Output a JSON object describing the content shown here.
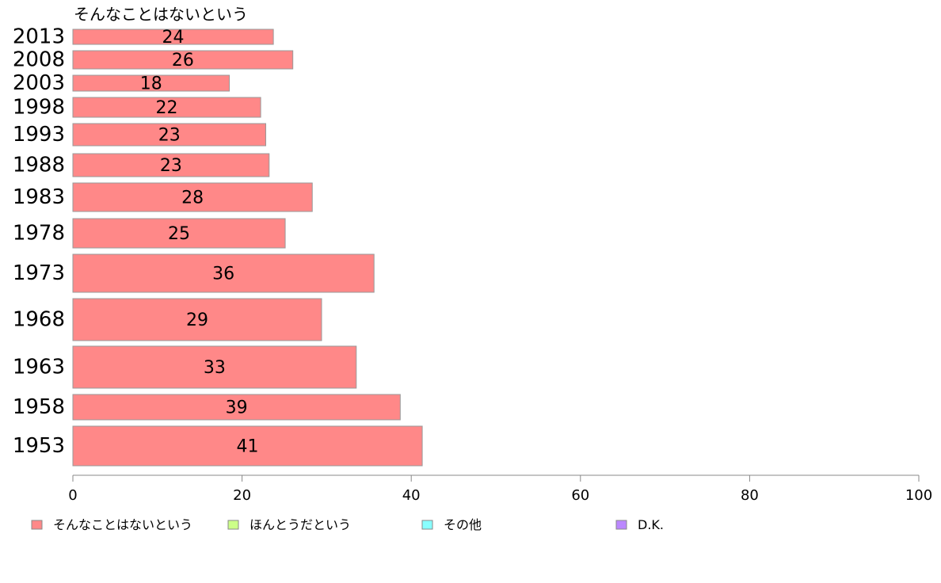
{
  "chart_data": {
    "type": "bar",
    "orientation": "horizontal",
    "series_label": "そんなことはないという",
    "categories": [
      "2013",
      "2008",
      "2003",
      "1998",
      "1993",
      "1988",
      "1983",
      "1978",
      "1973",
      "1968",
      "1963",
      "1958",
      "1953"
    ],
    "series": [
      {
        "name": "そんなことはないという",
        "color": "#ff8888",
        "values": [
          23.7,
          26.0,
          18.5,
          22.2,
          22.8,
          23.2,
          28.3,
          25.1,
          35.6,
          29.4,
          33.5,
          38.7,
          41.3
        ],
        "labels": [
          "24",
          "26",
          "18",
          "22",
          "23",
          "23",
          "28",
          "25",
          "36",
          "29",
          "33",
          "39",
          "41"
        ]
      }
    ],
    "xlim": [
      0,
      100
    ],
    "x_ticks": [
      "0",
      "20",
      "40",
      "60",
      "80",
      "100"
    ],
    "legend": {
      "placement": "bottom",
      "items": [
        {
          "label": "そんなことはないという",
          "color": "#ff8888"
        },
        {
          "label": "ほんとうだという",
          "color": "#ccff88"
        },
        {
          "label": "その他",
          "color": "#88ffff"
        },
        {
          "label": "D.K.",
          "color": "#bb88ff"
        }
      ]
    }
  }
}
